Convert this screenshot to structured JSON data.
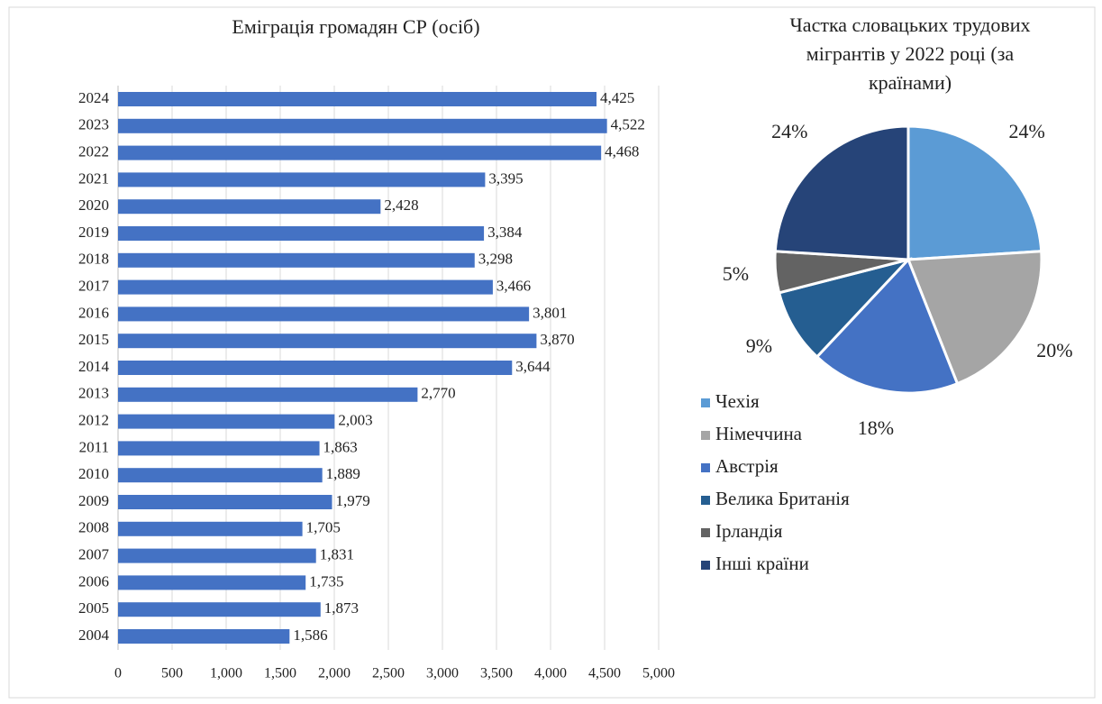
{
  "chart_data": [
    {
      "type": "barh",
      "title": "Еміграція громадян СР (осіб)",
      "categories": [
        "2024",
        "2023",
        "2022",
        "2021",
        "2020",
        "2019",
        "2018",
        "2017",
        "2016",
        "2015",
        "2014",
        "2013",
        "2012",
        "2011",
        "2010",
        "2009",
        "2008",
        "2007",
        "2006",
        "2005",
        "2004"
      ],
      "values": [
        4425,
        4522,
        4468,
        3395,
        2428,
        3384,
        3298,
        3466,
        3801,
        3870,
        3644,
        2770,
        2003,
        1863,
        1889,
        1979,
        1705,
        1831,
        1735,
        1873,
        1586
      ],
      "value_labels": [
        "4,425",
        "4,522",
        "4,468",
        "3,395",
        "2,428",
        "3,384",
        "3,298",
        "3,466",
        "3,801",
        "3,870",
        "3,644",
        "2,770",
        "2,003",
        "1,863",
        "1,889",
        "1,979",
        "1,705",
        "1,831",
        "1,735",
        "1,873",
        "1,586"
      ],
      "color": "#4472c4",
      "xlim": [
        0,
        5000
      ],
      "xticks": [
        0,
        500,
        {
          "value": 1000,
          "label": "1,000"
        },
        {
          "value": 1500,
          "label": "1,500"
        },
        {
          "value": 2000,
          "label": "2,000"
        },
        {
          "value": 2500,
          "label": "2,500"
        },
        {
          "value": 3000,
          "label": "3,000"
        },
        {
          "value": 3500,
          "label": "3,500"
        },
        {
          "value": 4000,
          "label": "4,000"
        },
        {
          "value": 4500,
          "label": "4,500"
        },
        {
          "value": 5000,
          "label": "5,000"
        }
      ],
      "grid": true
    },
    {
      "type": "pie",
      "title": "Частка словацьких трудових мігрантів у 2022 році (за країнами)",
      "categories": [
        "Чехія",
        "Німеччина",
        "Австрія",
        "Велика Британія",
        "Ірландія",
        "Інші країни"
      ],
      "values": [
        24,
        20,
        18,
        9,
        5,
        24
      ],
      "value_labels": [
        "24%",
        "20%",
        "18%",
        "9%",
        "5%",
        "24%"
      ],
      "colors": [
        "#5b9bd5",
        "#a5a5a5",
        "#4472c4",
        "#255e91",
        "#636363",
        "#264478"
      ],
      "legend": "bottom-left"
    }
  ]
}
